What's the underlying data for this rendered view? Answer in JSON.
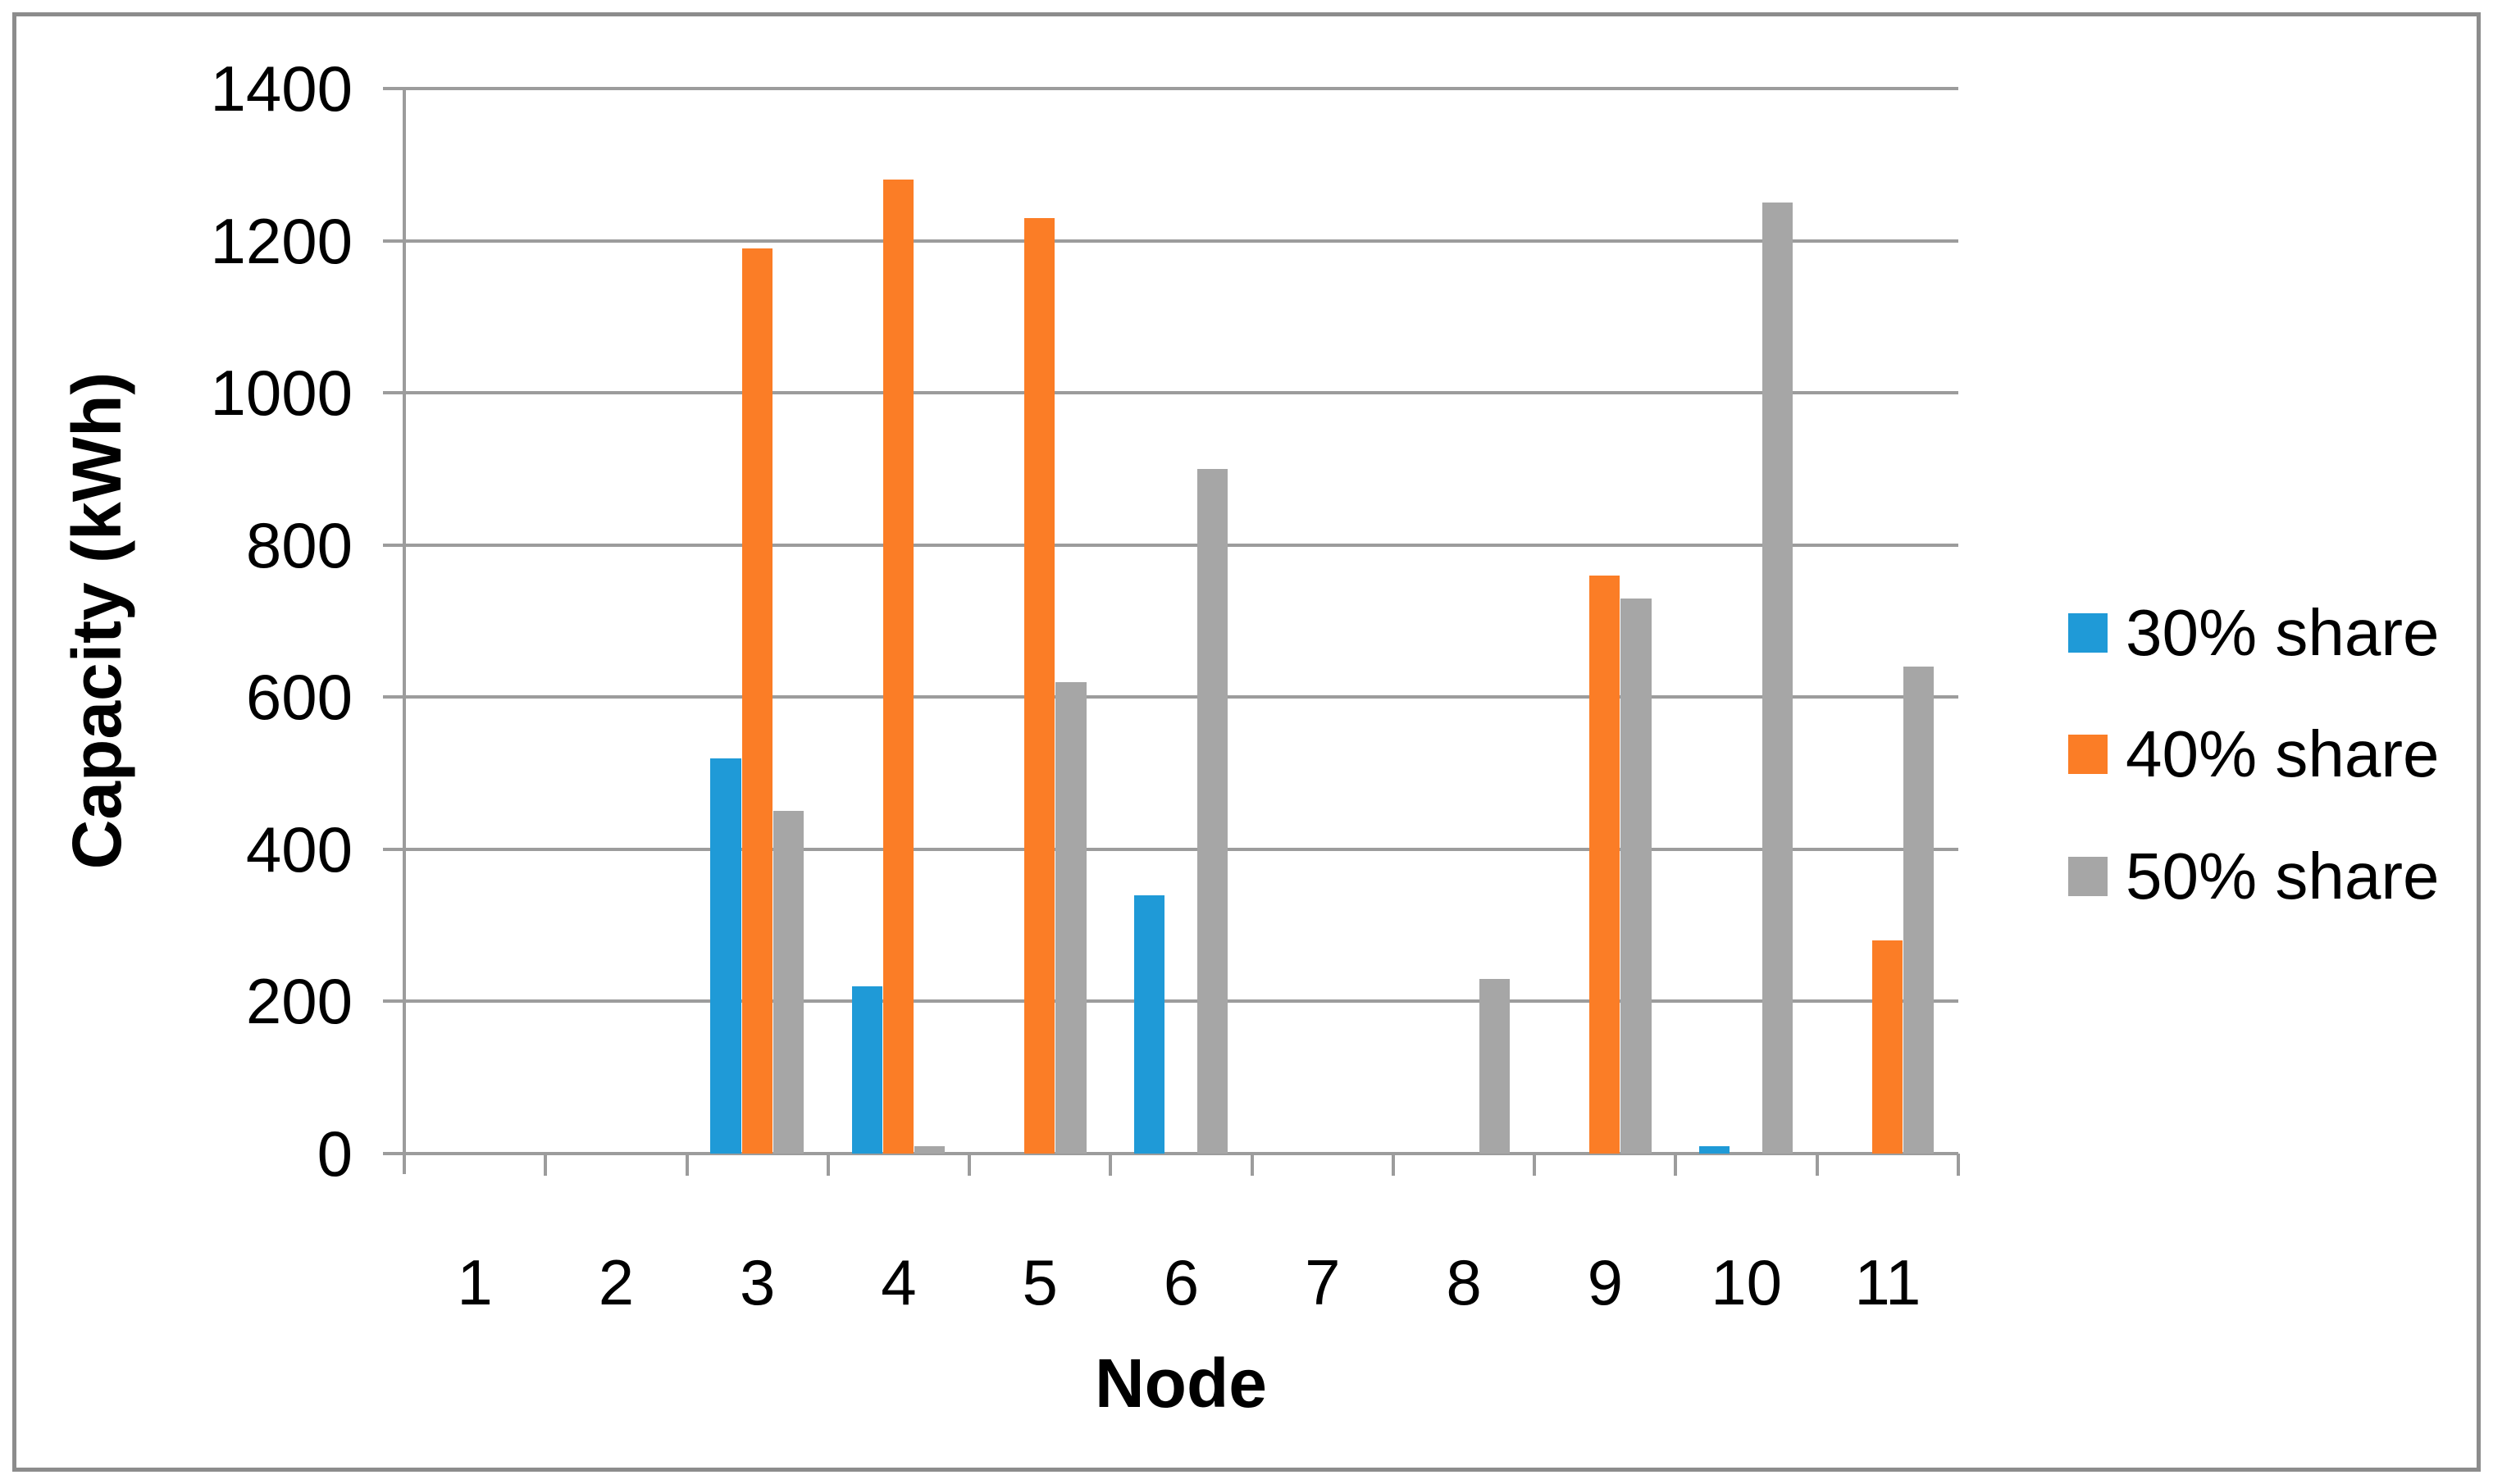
{
  "chart_data": {
    "type": "bar",
    "title": "",
    "xlabel": "Node",
    "ylabel": "Capacity (kWh)",
    "categories": [
      "1",
      "2",
      "3",
      "4",
      "5",
      "6",
      "7",
      "8",
      "9",
      "10",
      "11"
    ],
    "series": [
      {
        "name": "30% share",
        "color": "#1F9AD7",
        "values": [
          0,
          0,
          520,
          220,
          0,
          340,
          0,
          0,
          0,
          10,
          0
        ]
      },
      {
        "name": "40% share",
        "color": "#FB7D26",
        "values": [
          0,
          0,
          1190,
          1280,
          1230,
          0,
          0,
          0,
          760,
          0,
          280
        ]
      },
      {
        "name": "50% share",
        "color": "#A6A6A6",
        "values": [
          0,
          0,
          450,
          10,
          620,
          900,
          0,
          230,
          730,
          1250,
          640
        ]
      }
    ],
    "ylim": [
      0,
      1400
    ],
    "yticks": [
      0,
      200,
      400,
      600,
      800,
      1000,
      1200,
      1400
    ],
    "grid": true,
    "legend_position": "right",
    "axis_color": "#9C9C9C",
    "frame_border_color": "#8C8C8C",
    "text_color": "#000000"
  }
}
